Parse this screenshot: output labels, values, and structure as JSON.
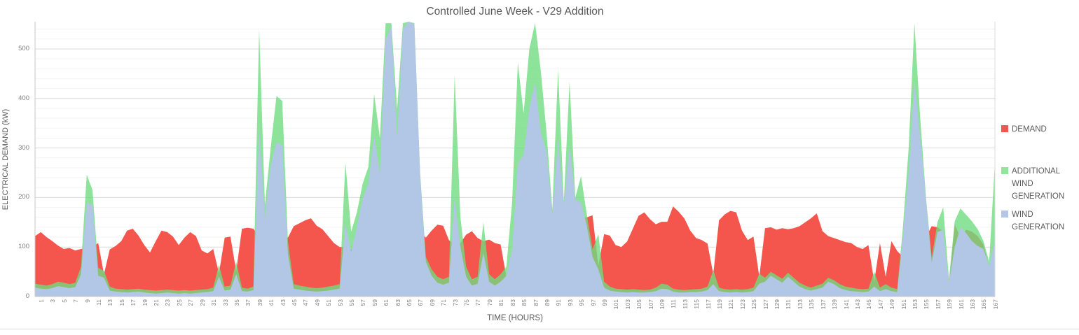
{
  "title": "Controlled June Week - V29 Addition",
  "legend": {
    "items": [
      {
        "label": "DEMAND",
        "color": "#f1564f"
      },
      {
        "label": "ADDITIONAL WIND GENERATION",
        "color": "#90e79b"
      },
      {
        "label": "WIND GENERATION",
        "color": "#b3c6e7"
      }
    ]
  },
  "chart_data": {
    "type": "area",
    "title": "Controlled June Week - V29 Addition",
    "xlabel": "TIME (HOURS)",
    "ylabel": "ELECTRICAL DEMAND (kW)",
    "x_start": 1,
    "x_end": 168,
    "ylim": [
      0,
      555
    ],
    "y_ticks": [
      0,
      100,
      200,
      300,
      400,
      500
    ],
    "grid": {
      "minor_step": 20,
      "major_step": 100
    },
    "legend_position": "right",
    "x_tick_labels": [
      1,
      3,
      5,
      7,
      9,
      11,
      13,
      15,
      17,
      19,
      21,
      23,
      25,
      27,
      29,
      31,
      33,
      35,
      37,
      39,
      41,
      43,
      45,
      47,
      49,
      51,
      53,
      55,
      57,
      59,
      61,
      63,
      65,
      67,
      69,
      71,
      73,
      75,
      77,
      79,
      81,
      83,
      85,
      87,
      89,
      91,
      93,
      95,
      97,
      99,
      101,
      103,
      105,
      107,
      109,
      111,
      113,
      115,
      117,
      119,
      121,
      123,
      125,
      127,
      129,
      131,
      133,
      135,
      137,
      139,
      141,
      143,
      145,
      147,
      149,
      151,
      153,
      155,
      157,
      159,
      161,
      163,
      165,
      167
    ],
    "series": [
      {
        "name": "DEMAND",
        "color": "#f4564e",
        "opacity": 1,
        "values": [
          122,
          130,
          120,
          112,
          103,
          96,
          98,
          93,
          96,
          98,
          100,
          108,
          45,
          95,
          102,
          112,
          133,
          137,
          123,
          104,
          89,
          112,
          133,
          130,
          121,
          104,
          119,
          130,
          122,
          93,
          87,
          96,
          47,
          119,
          121,
          51,
          137,
          139,
          137,
          120,
          155,
          150,
          118,
          120,
          119,
          142,
          148,
          154,
          158,
          143,
          136,
          122,
          108,
          100,
          100,
          95,
          100,
          110,
          118,
          126,
          132,
          138,
          144,
          148,
          148,
          145,
          140,
          130,
          119,
          133,
          145,
          143,
          114,
          105,
          108,
          125,
          132,
          118,
          112,
          115,
          108,
          105,
          40,
          70,
          95,
          105,
          115,
          125,
          135,
          140,
          145,
          150,
          152,
          154,
          155,
          158,
          160,
          164,
          62,
          126,
          123,
          104,
          100,
          111,
          137,
          163,
          170,
          156,
          146,
          151,
          151,
          182,
          171,
          157,
          133,
          118,
          114,
          107,
          45,
          154,
          166,
          173,
          170,
          133,
          114,
          121,
          40,
          138,
          140,
          135,
          138,
          136,
          138,
          142,
          150,
          158,
          168,
          132,
          122,
          118,
          114,
          110,
          108,
          100,
          96,
          104,
          30,
          108,
          40,
          112,
          92,
          80,
          90,
          100,
          110,
          120,
          142,
          140,
          132,
          22,
          145,
          120,
          135,
          131,
          122,
          105,
          58,
          75
        ]
      },
      {
        "name": "ADDITIONAL WIND GENERATION",
        "color": "#70dc80",
        "opacity": 0.8,
        "values": [
          26,
          24,
          22,
          25,
          30,
          28,
          25,
          28,
          60,
          246,
          215,
          58,
          52,
          20,
          16,
          15,
          14,
          15,
          16,
          14,
          13,
          12,
          13,
          14,
          13,
          12,
          13,
          12,
          13,
          14,
          15,
          18,
          64,
          20,
          22,
          70,
          18,
          16,
          20,
          540,
          185,
          300,
          405,
          395,
          110,
          25,
          22,
          20,
          18,
          17,
          18,
          20,
          22,
          25,
          271,
          131,
          170,
          228,
          262,
          409,
          320,
          552,
          552,
          378,
          552,
          555,
          552,
          250,
          80,
          55,
          40,
          35,
          40,
          448,
          160,
          60,
          35,
          40,
          150,
          45,
          35,
          45,
          60,
          190,
          472,
          370,
          500,
          552,
          455,
          330,
          175,
          458,
          192,
          434,
          200,
          243,
          166,
          95,
          126,
          30,
          20,
          16,
          15,
          14,
          15,
          14,
          13,
          14,
          18,
          26,
          24,
          16,
          14,
          13,
          14,
          15,
          16,
          20,
          53,
          18,
          15,
          14,
          15,
          14,
          15,
          18,
          46,
          38,
          50,
          43,
          36,
          48,
          38,
          28,
          22,
          18,
          22,
          26,
          38,
          33,
          25,
          20,
          18,
          16,
          15,
          16,
          50,
          18,
          25,
          18,
          15,
          140,
          300,
          552,
          360,
          200,
          78,
          150,
          180,
          35,
          152,
          178,
          165,
          152,
          136,
          112,
          70,
          270
        ]
      },
      {
        "name": "WIND GENERATION",
        "color": "#b2c6e6",
        "opacity": 1,
        "values": [
          18,
          16,
          15,
          17,
          21,
          19,
          17,
          19,
          45,
          190,
          185,
          42,
          38,
          12,
          10,
          9,
          8,
          9,
          10,
          8,
          7,
          6,
          7,
          8,
          7,
          6,
          7,
          6,
          7,
          8,
          9,
          11,
          40,
          12,
          14,
          45,
          11,
          10,
          13,
          340,
          160,
          264,
          312,
          305,
          85,
          16,
          14,
          12,
          11,
          10,
          11,
          12,
          14,
          16,
          148,
          90,
          140,
          198,
          228,
          326,
          248,
          520,
          545,
          322,
          540,
          555,
          550,
          246,
          70,
          42,
          28,
          24,
          28,
          200,
          100,
          40,
          22,
          26,
          88,
          30,
          22,
          30,
          42,
          95,
          270,
          285,
          380,
          432,
          330,
          294,
          167,
          316,
          185,
          305,
          196,
          190,
          143,
          80,
          55,
          18,
          12,
          10,
          9,
          8,
          9,
          8,
          8,
          9,
          11,
          16,
          15,
          10,
          8,
          8,
          9,
          9,
          10,
          13,
          25,
          11,
          9,
          8,
          9,
          8,
          9,
          11,
          26,
          30,
          42,
          35,
          28,
          40,
          30,
          20,
          15,
          12,
          15,
          18,
          30,
          25,
          17,
          13,
          11,
          10,
          9,
          10,
          20,
          11,
          15,
          11,
          9,
          120,
          250,
          437,
          321,
          195,
          69,
          130,
          135,
          28,
          100,
          140,
          128,
          112,
          102,
          96,
          62,
          113
        ]
      }
    ]
  }
}
